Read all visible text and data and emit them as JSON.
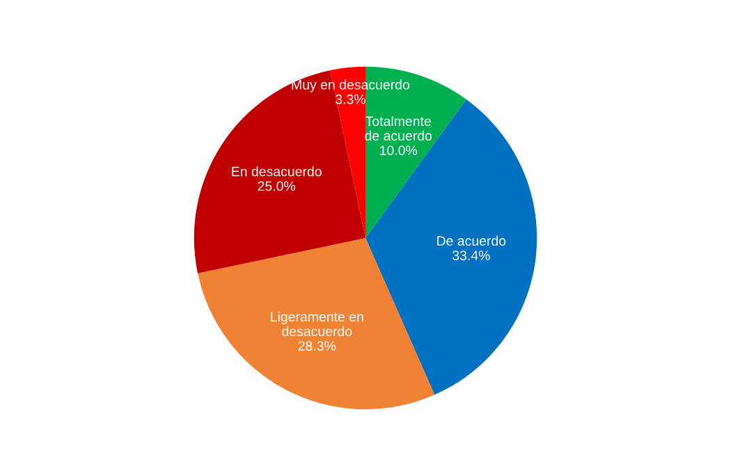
{
  "chart_data": {
    "type": "pie",
    "categories": [
      "Totalmente\nde acuerdo",
      "De acuerdo",
      "Ligeramente en\ndesacuerdo",
      "En desacuerdo",
      "Muy en desacuerdo"
    ],
    "values": [
      10.0,
      33.4,
      28.3,
      25.0,
      3.3
    ],
    "value_labels": [
      "10.0%",
      "33.4%",
      "28.3%",
      "25.0%",
      "3.3%"
    ],
    "colors": [
      "#00b050",
      "#0070c0",
      "#f08234",
      "#c00000",
      "#ff0000"
    ],
    "legend": false
  }
}
